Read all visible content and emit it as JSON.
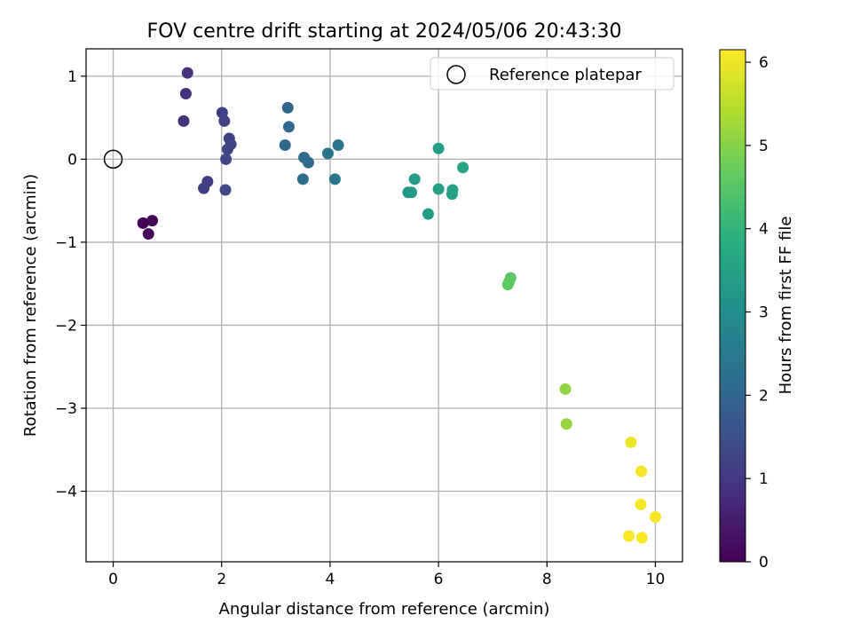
{
  "chart_data": {
    "type": "scatter",
    "title": "FOV centre drift starting at 2024/05/06 20:43:30",
    "xlabel": "Angular distance from reference (arcmin)",
    "ylabel": "Rotation from reference (arcmin)",
    "xlim": [
      -0.5,
      10.5
    ],
    "ylim": [
      -4.85,
      1.33
    ],
    "xticks": [
      0,
      2,
      4,
      6,
      8,
      10
    ],
    "xtick_labels": [
      "0",
      "2",
      "4",
      "6",
      "8",
      "10"
    ],
    "yticks": [
      1,
      0,
      -1,
      -2,
      -3,
      -4
    ],
    "ytick_labels": [
      "1",
      "0",
      "−1",
      "−2",
      "−3",
      "−4"
    ],
    "grid": true,
    "legend": {
      "placement": "top-right",
      "entries": [
        "Reference platepar"
      ]
    },
    "reference_point": {
      "name": "Reference platepar",
      "x": 0,
      "y": 0
    },
    "colorbar": {
      "label": "Hours from first FF file",
      "range": [
        0,
        6.15
      ],
      "ticks": [
        0,
        1,
        2,
        3,
        4,
        5,
        6
      ],
      "tick_labels": [
        "0",
        "1",
        "2",
        "3",
        "4",
        "5",
        "6"
      ],
      "colormap": "viridis"
    },
    "points": [
      {
        "x": 0.55,
        "y": -0.77,
        "hours": 0.03
      },
      {
        "x": 0.72,
        "y": -0.74,
        "hours": 0.05
      },
      {
        "x": 0.65,
        "y": -0.9,
        "hours": 0.08
      },
      {
        "x": 1.37,
        "y": 1.04,
        "hours": 0.85
      },
      {
        "x": 1.34,
        "y": 0.79,
        "hours": 0.88
      },
      {
        "x": 1.3,
        "y": 0.46,
        "hours": 0.9
      },
      {
        "x": 1.74,
        "y": -0.27,
        "hours": 1.1
      },
      {
        "x": 1.67,
        "y": -0.35,
        "hours": 1.12
      },
      {
        "x": 2.01,
        "y": 0.56,
        "hours": 1.15
      },
      {
        "x": 2.05,
        "y": 0.46,
        "hours": 1.18
      },
      {
        "x": 2.14,
        "y": 0.25,
        "hours": 1.2
      },
      {
        "x": 2.17,
        "y": 0.18,
        "hours": 1.22
      },
      {
        "x": 2.11,
        "y": 0.12,
        "hours": 1.25
      },
      {
        "x": 2.08,
        "y": 0.0,
        "hours": 1.28
      },
      {
        "x": 2.07,
        "y": -0.37,
        "hours": 1.3
      },
      {
        "x": 3.22,
        "y": 0.62,
        "hours": 2.05
      },
      {
        "x": 3.24,
        "y": 0.39,
        "hours": 2.08
      },
      {
        "x": 3.17,
        "y": 0.17,
        "hours": 2.1
      },
      {
        "x": 3.52,
        "y": 0.02,
        "hours": 2.12
      },
      {
        "x": 3.6,
        "y": -0.04,
        "hours": 2.15
      },
      {
        "x": 3.5,
        "y": -0.24,
        "hours": 2.18
      },
      {
        "x": 3.96,
        "y": 0.07,
        "hours": 2.35
      },
      {
        "x": 4.15,
        "y": 0.17,
        "hours": 2.38
      },
      {
        "x": 4.09,
        "y": -0.24,
        "hours": 2.4
      },
      {
        "x": 5.44,
        "y": -0.4,
        "hours": 3.3
      },
      {
        "x": 5.5,
        "y": -0.4,
        "hours": 3.32
      },
      {
        "x": 5.56,
        "y": -0.24,
        "hours": 3.35
      },
      {
        "x": 5.81,
        "y": -0.66,
        "hours": 3.4
      },
      {
        "x": 6.0,
        "y": 0.13,
        "hours": 3.45
      },
      {
        "x": 6.0,
        "y": -0.36,
        "hours": 3.48
      },
      {
        "x": 6.26,
        "y": -0.37,
        "hours": 3.5
      },
      {
        "x": 6.25,
        "y": -0.42,
        "hours": 3.52
      },
      {
        "x": 6.45,
        "y": -0.1,
        "hours": 3.6
      },
      {
        "x": 7.33,
        "y": -1.43,
        "hours": 4.55
      },
      {
        "x": 7.3,
        "y": -1.48,
        "hours": 4.58
      },
      {
        "x": 7.28,
        "y": -1.51,
        "hours": 4.6
      },
      {
        "x": 8.34,
        "y": -2.77,
        "hours": 5.1
      },
      {
        "x": 8.36,
        "y": -3.19,
        "hours": 5.15
      },
      {
        "x": 9.55,
        "y": -3.41,
        "hours": 6.0
      },
      {
        "x": 9.74,
        "y": -3.76,
        "hours": 6.05
      },
      {
        "x": 9.73,
        "y": -4.16,
        "hours": 6.08
      },
      {
        "x": 10.0,
        "y": -4.31,
        "hours": 6.1
      },
      {
        "x": 9.51,
        "y": -4.54,
        "hours": 6.12
      },
      {
        "x": 9.75,
        "y": -4.56,
        "hours": 6.14
      }
    ]
  }
}
